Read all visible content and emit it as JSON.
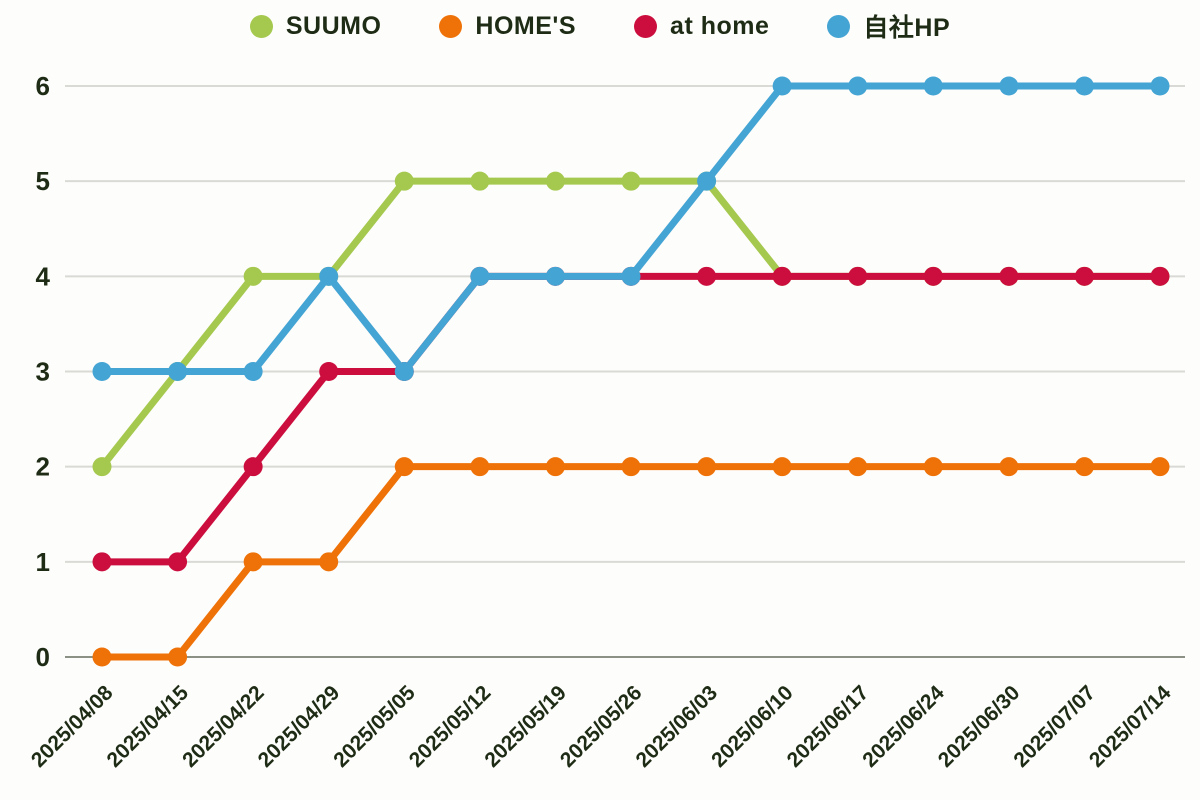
{
  "chart_data": {
    "type": "line",
    "title": "",
    "xlabel": "",
    "ylabel": "",
    "categories": [
      "2025/04/08",
      "2025/04/15",
      "2025/04/22",
      "2025/04/29",
      "2025/05/05",
      "2025/05/12",
      "2025/05/19",
      "2025/05/26",
      "2025/06/03",
      "2025/06/10",
      "2025/06/17",
      "2025/06/24",
      "2025/06/30",
      "2025/07/07",
      "2025/07/14"
    ],
    "series": [
      {
        "name": "SUUMO",
        "color": "#a5c84e",
        "values": [
          2,
          3,
          4,
          4,
          5,
          5,
          5,
          5,
          5,
          4,
          4,
          4,
          4,
          4,
          4
        ]
      },
      {
        "name": "HOME'S",
        "color": "#ee7208",
        "values": [
          0,
          0,
          1,
          1,
          2,
          2,
          2,
          2,
          2,
          2,
          2,
          2,
          2,
          2,
          2
        ]
      },
      {
        "name": "at home",
        "color": "#cb0e3e",
        "values": [
          1,
          1,
          2,
          3,
          3,
          4,
          4,
          4,
          4,
          4,
          4,
          4,
          4,
          4,
          4
        ]
      },
      {
        "name": "自社HP",
        "color": "#44a4d4",
        "values": [
          3,
          3,
          3,
          4,
          3,
          4,
          4,
          4,
          5,
          6,
          6,
          6,
          6,
          6,
          6
        ]
      }
    ],
    "ylim": [
      0,
      6
    ],
    "yticks": [
      0,
      1,
      2,
      3,
      4,
      5,
      6
    ],
    "grid": true,
    "legend_position": "top"
  },
  "colors": {
    "background": "#fdfdfb",
    "gridline": "#d9d9d6",
    "zero_axis_line": "#8b9185",
    "tick_text": "#1e2b15"
  }
}
